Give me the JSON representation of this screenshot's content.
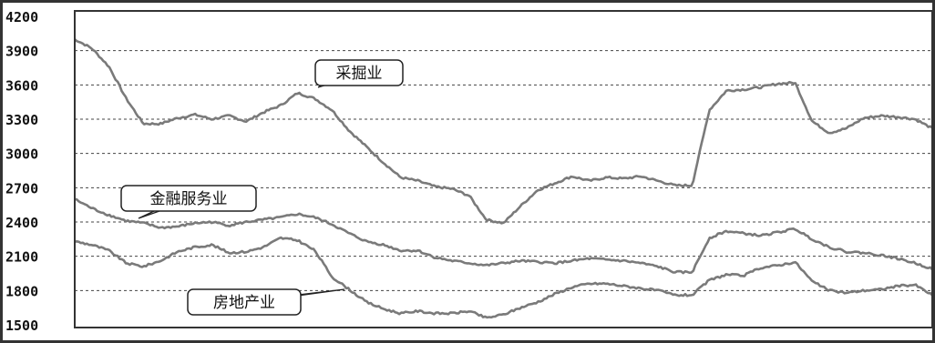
{
  "chart_data": {
    "type": "line",
    "ylim": [
      1500,
      4200
    ],
    "y_ticks": [
      "4200",
      "3900",
      "3600",
      "3300",
      "3000",
      "2700",
      "2400",
      "2100",
      "1800",
      "1500"
    ],
    "grid": true,
    "colors": {
      "line": "#7a7a7a",
      "grid": "#444444",
      "frame": "#333333",
      "label_bg": "#ffffff"
    },
    "series": [
      {
        "name": "采掘业",
        "x": [
          0,
          0.02,
          0.04,
          0.06,
          0.08,
          0.1,
          0.12,
          0.14,
          0.16,
          0.18,
          0.2,
          0.22,
          0.24,
          0.26,
          0.28,
          0.3,
          0.32,
          0.34,
          0.36,
          0.38,
          0.4,
          0.42,
          0.44,
          0.46,
          0.48,
          0.5,
          0.52,
          0.54,
          0.56,
          0.58,
          0.6,
          0.62,
          0.64,
          0.66,
          0.68,
          0.7,
          0.72,
          0.74,
          0.76,
          0.78,
          0.8,
          0.82,
          0.84,
          0.86,
          0.88,
          0.9,
          0.92,
          0.94,
          0.96,
          0.98,
          1.0
        ],
        "values": [
          4000,
          3920,
          3760,
          3480,
          3260,
          3260,
          3310,
          3340,
          3300,
          3330,
          3280,
          3360,
          3420,
          3530,
          3480,
          3380,
          3200,
          3060,
          2920,
          2790,
          2760,
          2710,
          2690,
          2630,
          2420,
          2390,
          2540,
          2680,
          2740,
          2800,
          2760,
          2790,
          2780,
          2800,
          2760,
          2720,
          2720,
          3380,
          3550,
          3560,
          3580,
          3610,
          3620,
          3280,
          3180,
          3220,
          3310,
          3330,
          3320,
          3300,
          3220
        ]
      },
      {
        "name": "金融服务业",
        "x": [
          0,
          0.02,
          0.04,
          0.06,
          0.08,
          0.1,
          0.12,
          0.14,
          0.16,
          0.18,
          0.2,
          0.22,
          0.24,
          0.26,
          0.28,
          0.3,
          0.32,
          0.34,
          0.36,
          0.38,
          0.4,
          0.42,
          0.44,
          0.46,
          0.48,
          0.5,
          0.52,
          0.54,
          0.56,
          0.58,
          0.6,
          0.62,
          0.64,
          0.66,
          0.68,
          0.7,
          0.72,
          0.74,
          0.76,
          0.78,
          0.8,
          0.82,
          0.84,
          0.86,
          0.88,
          0.9,
          0.92,
          0.94,
          0.96,
          0.98,
          1.0
        ],
        "values": [
          2600,
          2520,
          2460,
          2410,
          2390,
          2350,
          2360,
          2390,
          2400,
          2370,
          2400,
          2420,
          2440,
          2470,
          2440,
          2380,
          2300,
          2230,
          2200,
          2150,
          2150,
          2090,
          2060,
          2040,
          2020,
          2040,
          2060,
          2050,
          2040,
          2060,
          2080,
          2070,
          2060,
          2040,
          2010,
          1960,
          1960,
          2260,
          2320,
          2300,
          2280,
          2310,
          2340,
          2250,
          2180,
          2140,
          2130,
          2110,
          2080,
          2040,
          1990
        ]
      },
      {
        "name": "房地产业",
        "x": [
          0,
          0.02,
          0.04,
          0.06,
          0.08,
          0.1,
          0.12,
          0.14,
          0.16,
          0.18,
          0.2,
          0.22,
          0.24,
          0.26,
          0.28,
          0.3,
          0.32,
          0.34,
          0.36,
          0.38,
          0.4,
          0.42,
          0.44,
          0.46,
          0.48,
          0.5,
          0.52,
          0.54,
          0.56,
          0.58,
          0.6,
          0.62,
          0.64,
          0.66,
          0.68,
          0.7,
          0.72,
          0.74,
          0.76,
          0.78,
          0.8,
          0.82,
          0.84,
          0.86,
          0.88,
          0.9,
          0.92,
          0.94,
          0.96,
          0.98,
          1.0
        ],
        "values": [
          2230,
          2200,
          2150,
          2040,
          2010,
          2060,
          2140,
          2180,
          2200,
          2130,
          2140,
          2180,
          2260,
          2240,
          2150,
          1920,
          1810,
          1700,
          1640,
          1600,
          1620,
          1600,
          1600,
          1620,
          1560,
          1590,
          1650,
          1700,
          1770,
          1830,
          1860,
          1860,
          1840,
          1820,
          1800,
          1760,
          1760,
          1890,
          1940,
          1930,
          2000,
          2020,
          2050,
          1880,
          1800,
          1780,
          1800,
          1810,
          1840,
          1850,
          1760
        ]
      }
    ],
    "annotations": [
      {
        "text": "采掘业",
        "series": 0,
        "x": 0.38
      },
      {
        "text": "金融服务业",
        "series": 1,
        "x": 0.11
      },
      {
        "text": "房地产业",
        "series": 2,
        "x": 0.37
      }
    ]
  }
}
